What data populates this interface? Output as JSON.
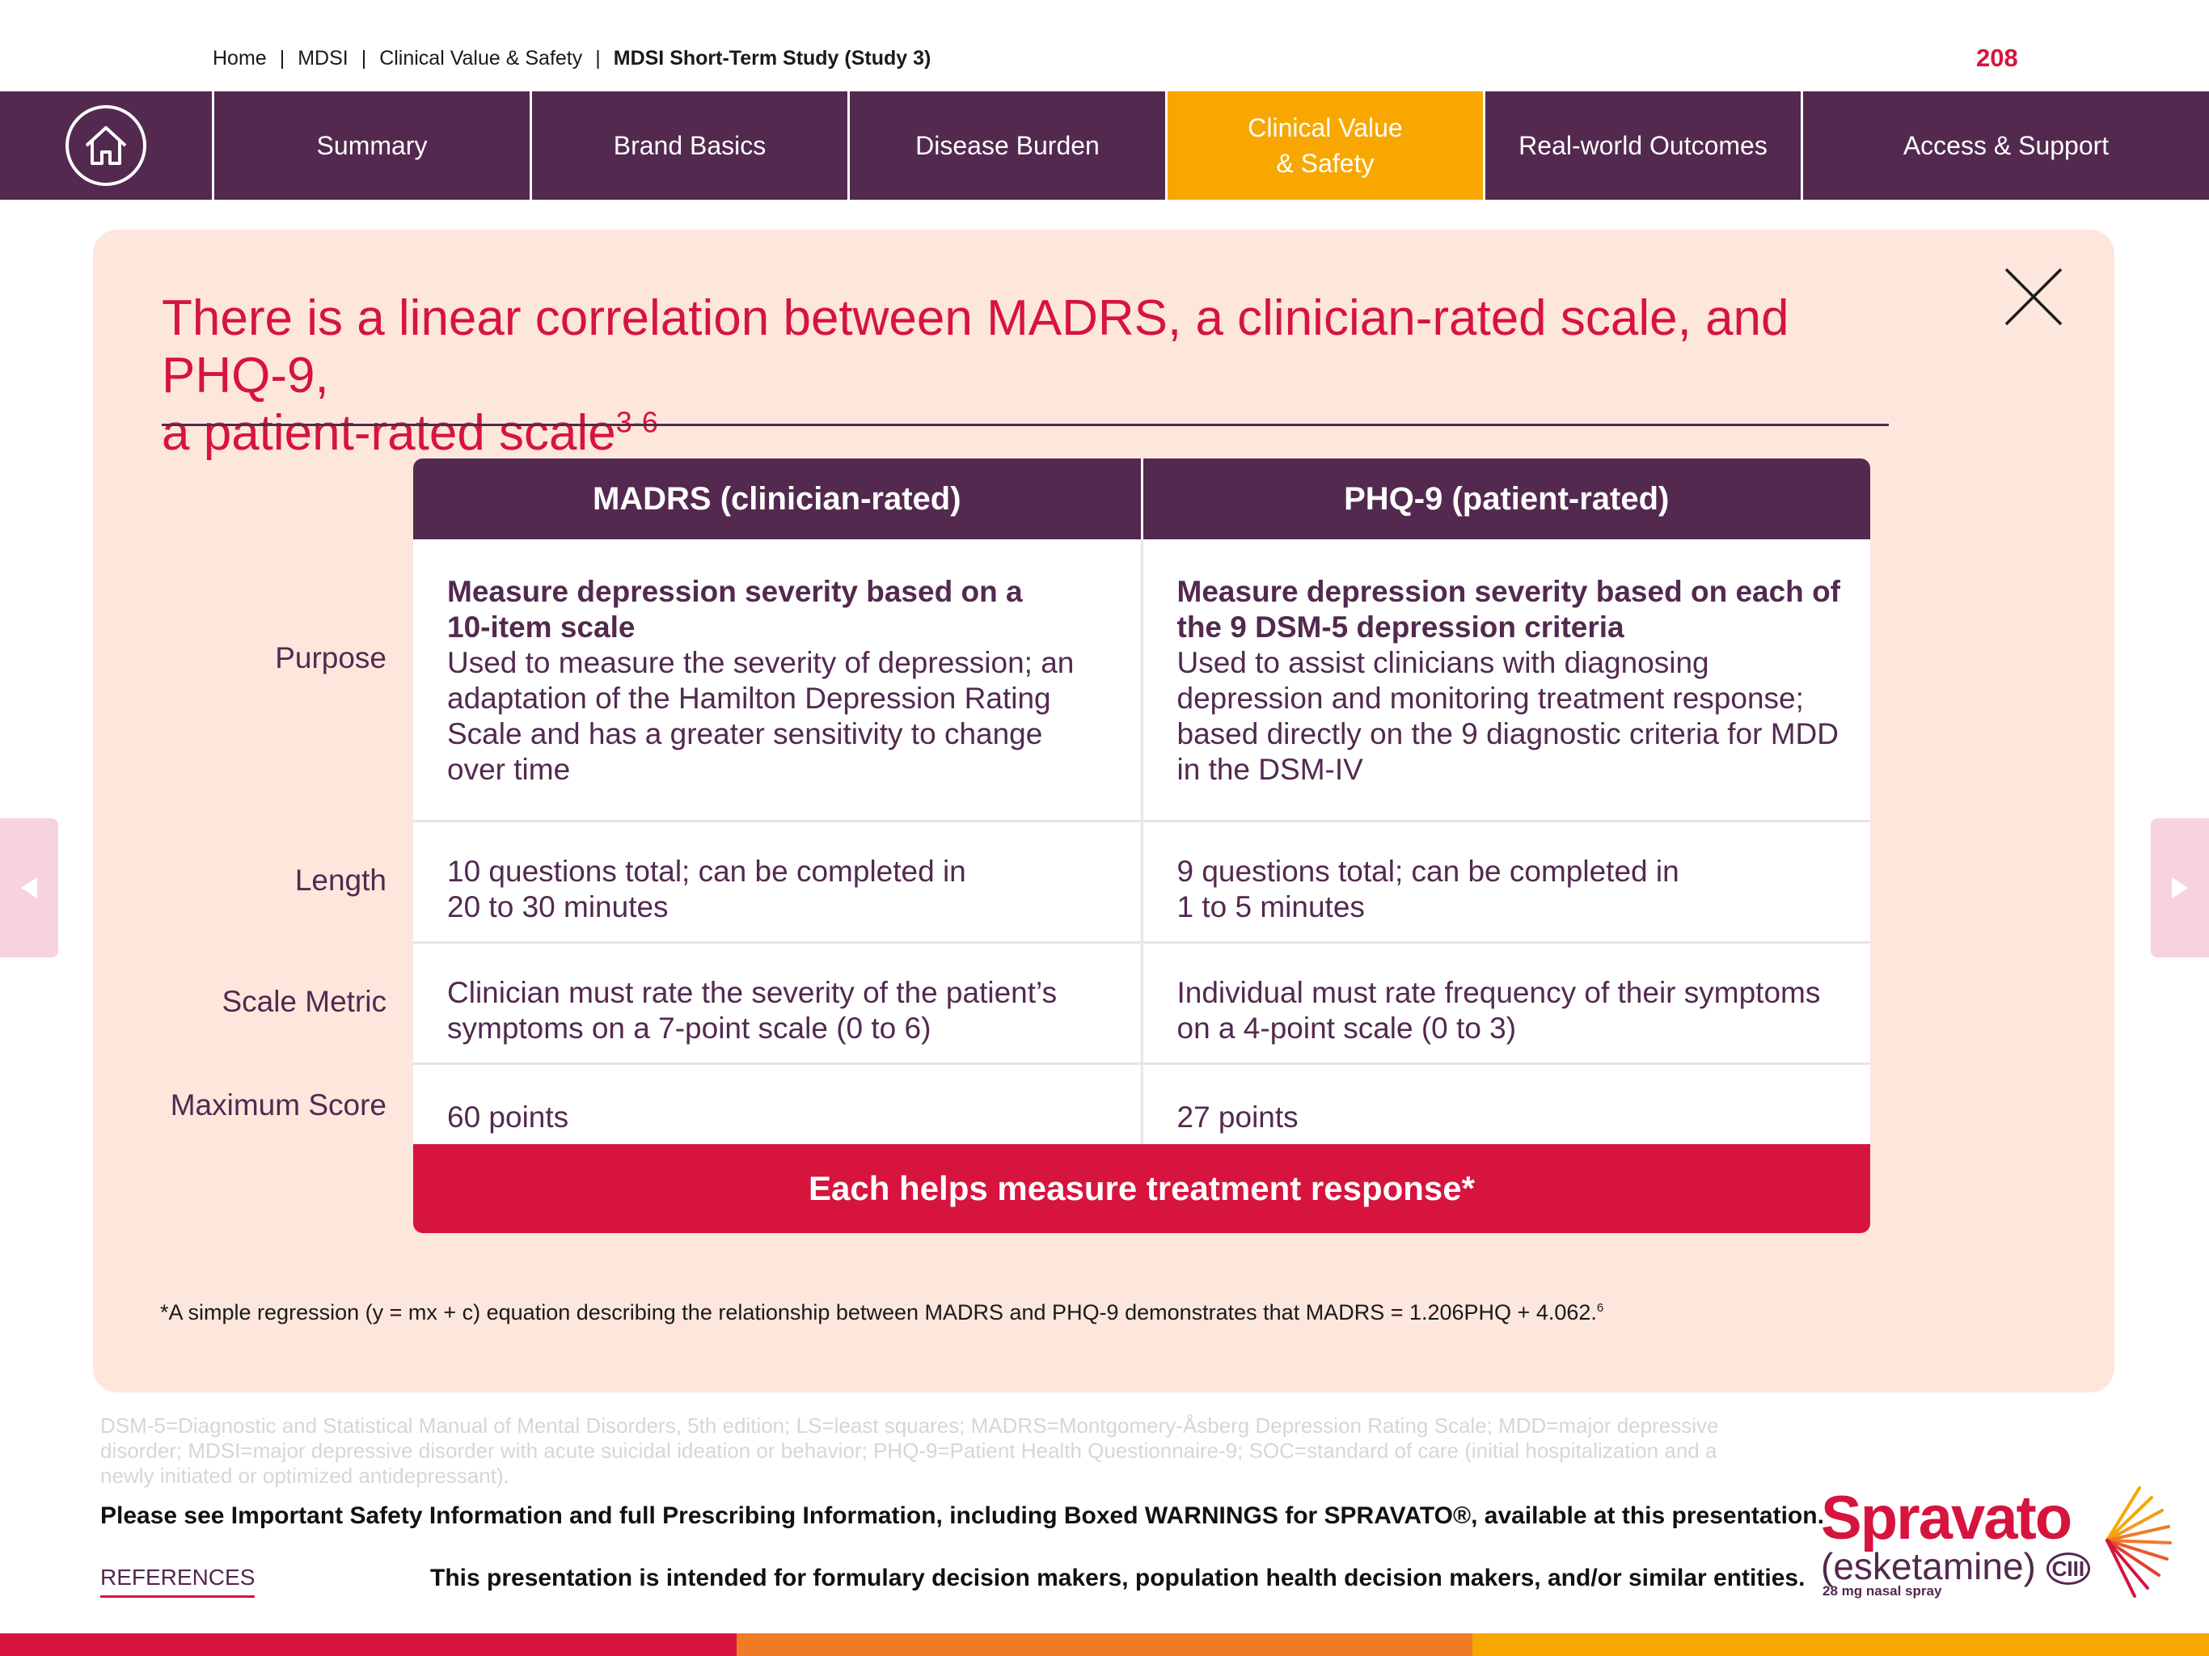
{
  "breadcrumb": {
    "items": [
      "Home",
      "MDSI",
      "Clinical Value & Safety",
      "MDSI Short-Term Study (Study 3)"
    ],
    "separator": "|"
  },
  "page_number": "208",
  "nav": {
    "home_icon": "home-icon",
    "items": [
      {
        "label": "Summary"
      },
      {
        "label": "Brand Basics"
      },
      {
        "label": "Disease Burden"
      },
      {
        "label_line1": "Clinical Value",
        "label_line2": "& Safety",
        "active": true
      },
      {
        "label": "Real-world Outcomes"
      },
      {
        "label": "Access & Support"
      }
    ]
  },
  "side_nav": {
    "prev_icon": "arrow-left-icon",
    "next_icon": "arrow-right-icon"
  },
  "panel": {
    "close_icon": "close-icon",
    "title_line1": "There is a linear correlation between MADRS, a clinician-rated scale, and PHQ-9,",
    "title_line2": "a patient-rated scale",
    "title_sup": "3-6",
    "table": {
      "columns": [
        "MADRS (clinician-rated)",
        "PHQ-9 (patient-rated)"
      ],
      "rows": [
        {
          "label": "Purpose",
          "madrs_strong": [
            "Measure depression severity based on a",
            "10-item scale"
          ],
          "madrs_text": [
            "Used to measure the severity of depression; an",
            "adaptation of the Hamilton Depression Rating",
            "Scale and has a greater sensitivity to change",
            "over time"
          ],
          "phq_strong": [
            "Measure depression severity based on each of",
            "the 9 DSM-5 depression criteria"
          ],
          "phq_text": [
            "Used to assist clinicians with diagnosing",
            "depression and monitoring treatment response;",
            "based directly on the 9 diagnostic criteria for MDD",
            "in the DSM-IV"
          ]
        },
        {
          "label": "Length",
          "madrs_text": [
            "10 questions total; can be completed in",
            "20 to 30 minutes"
          ],
          "phq_text": [
            "9 questions total; can be completed in",
            "1 to 5 minutes"
          ]
        },
        {
          "label": "Scale Metric",
          "madrs_text": [
            "Clinician must rate the severity of the patient’s",
            "symptoms on a 7-point scale (0 to 6)"
          ],
          "phq_text": [
            "Individual must rate frequency of their symptoms",
            "on a 4-point scale (0 to 3)"
          ]
        },
        {
          "label": "Maximum Score",
          "madrs_text": [
            "60 points"
          ],
          "phq_text": [
            "27 points"
          ]
        }
      ],
      "footer": "Each helps measure treatment response*"
    },
    "footnote": "*A simple regression (y = mx + c) equation describing the relationship between MADRS and PHQ-9 demonstrates that MADRS = 1.206PHQ + 4.062.",
    "footnote_sup": "6"
  },
  "abbreviations": "DSM-5=Diagnostic and Statistical Manual of Mental Disorders, 5th edition; LS=least squares; MADRS=Montgomery-Åsberg Depression Rating Scale; MDD=major depressive disorder; MDSI=major depressive disorder with acute suicidal ideation or behavior; PHQ-9=Patient Health Questionnaire-9; SOC=standard of care (initial hospitalization and a newly initiated or optimized antidepressant).",
  "isi": "Please see Important Safety Information and full Prescribing Information, including Boxed WARNINGS for SPRAVATO®, available at this presentation.",
  "references_label": "REFERENCES",
  "intent": "This presentation is intended for formulary decision makers, population health decision makers, and/or similar entities.",
  "logo": {
    "brand": "Spravato",
    "generic": "(esketamine)",
    "schedule": "CIII",
    "dose": "28 mg nasal spray"
  },
  "colors": {
    "nav_bg": "#53294f",
    "nav_active": "#f8a700",
    "accent_red": "#d6143e",
    "panel_bg": "#fde6dc",
    "bottom_bar": [
      "#d6143e",
      "#f07a26",
      "#f8a700"
    ]
  }
}
